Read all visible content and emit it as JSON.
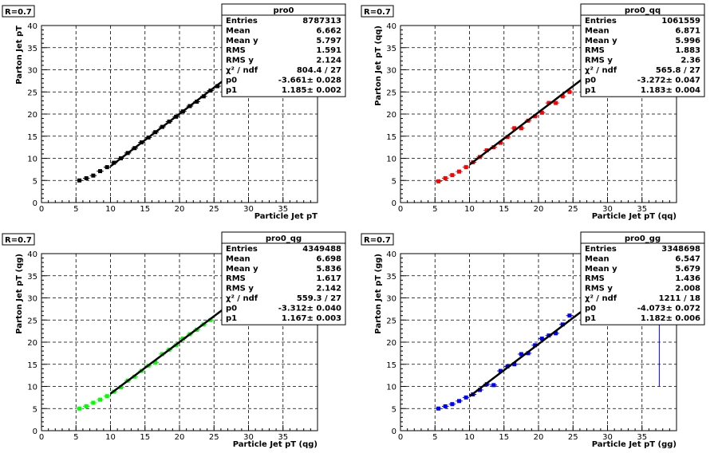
{
  "chart_data": [
    {
      "type": "scatter",
      "label": "R=0.7",
      "ylabel": "Parton Jet pT",
      "xlabel": "Particle Jet pT",
      "xlim": [
        0,
        40
      ],
      "ylim": [
        0,
        40
      ],
      "xticks": [
        0,
        5,
        10,
        15,
        20,
        25,
        30,
        35
      ],
      "yticks": [
        0,
        5,
        10,
        15,
        20,
        25,
        30,
        35,
        40
      ],
      "grid": true,
      "color": "#000000",
      "stats": {
        "title": "pro0",
        "rows": [
          {
            "k": "Entries",
            "v": "8787313"
          },
          {
            "k": "Mean",
            "v": "6.662"
          },
          {
            "k": "Mean y",
            "v": "5.797"
          },
          {
            "k": "RMS",
            "v": "1.591"
          },
          {
            "k": "RMS y",
            "v": "2.124"
          },
          {
            "k": "χ² / ndf",
            "v": "804.4 / 27"
          },
          {
            "k": "p0",
            "v": "-3.661± 0.028"
          },
          {
            "k": "p1",
            "v": "1.185± 0.002"
          }
        ]
      },
      "fit": {
        "x_range": [
          10,
          27
        ],
        "p0": -3.661,
        "p1": 1.185
      },
      "x": [
        5.5,
        6.5,
        7.5,
        8.5,
        9.5,
        10.5,
        11.5,
        12.5,
        13.5,
        14.5,
        15.5,
        16.5,
        17.5,
        18.5,
        19.5,
        20.5,
        21.5,
        22.5,
        23.5,
        24.5,
        25.5
      ],
      "y": [
        5.0,
        5.5,
        6.1,
        7.1,
        8.0,
        9.0,
        10.0,
        11.2,
        12.3,
        13.6,
        14.7,
        15.9,
        17.1,
        18.3,
        19.4,
        20.6,
        21.8,
        22.8,
        24.0,
        25.3,
        26.3
      ],
      "extra_line": null
    },
    {
      "type": "scatter",
      "label": "R=0.7",
      "ylabel": "Parton Jet pT (qq)",
      "xlabel": "Particle Jet pT (qq)",
      "xlim": [
        0,
        40
      ],
      "ylim": [
        0,
        40
      ],
      "xticks": [
        0,
        5,
        10,
        15,
        20,
        25,
        30,
        35
      ],
      "yticks": [
        0,
        5,
        10,
        15,
        20,
        25,
        30,
        35,
        40
      ],
      "grid": true,
      "color": "#ff0000",
      "stats": {
        "title": "pro0_qq",
        "rows": [
          {
            "k": "Entries",
            "v": "1061559"
          },
          {
            "k": "Mean",
            "v": "6.871"
          },
          {
            "k": "Mean y",
            "v": "5.996"
          },
          {
            "k": "RMS",
            "v": "1.883"
          },
          {
            "k": "RMS y",
            "v": "2.36"
          },
          {
            "k": "χ² / ndf",
            "v": "565.8 / 27"
          },
          {
            "k": "p0",
            "v": "-3.272± 0.047"
          },
          {
            "k": "p1",
            "v": "1.183± 0.004"
          }
        ]
      },
      "fit": {
        "x_range": [
          10,
          27
        ],
        "p0": -3.272,
        "p1": 1.183
      },
      "x": [
        5.5,
        6.5,
        7.5,
        8.5,
        9.5,
        10.5,
        11.5,
        12.5,
        13.5,
        14.5,
        15.5,
        16.5,
        17.5,
        18.5,
        19.5,
        20.5,
        21.5,
        22.5,
        23.5,
        24.5
      ],
      "y": [
        4.8,
        5.5,
        6.2,
        7.0,
        8.0,
        9.1,
        10.3,
        11.8,
        12.5,
        13.5,
        14.8,
        16.8,
        16.8,
        18.5,
        19.5,
        20.3,
        22.5,
        22.5,
        24.0,
        25.0
      ],
      "extra_line": null
    },
    {
      "type": "scatter",
      "label": "R=0.7",
      "ylabel": "Parton Jet pT (qg)",
      "xlabel": "Particle Jet pT (qg)",
      "xlim": [
        0,
        40
      ],
      "ylim": [
        0,
        40
      ],
      "xticks": [
        0,
        5,
        10,
        15,
        20,
        25,
        30,
        35
      ],
      "yticks": [
        0,
        5,
        10,
        15,
        20,
        25,
        30,
        35,
        40
      ],
      "grid": true,
      "color": "#00ff00",
      "stats": {
        "title": "pro0_qg",
        "rows": [
          {
            "k": "Entries",
            "v": "4349488"
          },
          {
            "k": "Mean",
            "v": "6.698"
          },
          {
            "k": "Mean y",
            "v": "5.836"
          },
          {
            "k": "RMS",
            "v": "1.617"
          },
          {
            "k": "RMS y",
            "v": "2.142"
          },
          {
            "k": "χ² / ndf",
            "v": "559.3 / 27"
          },
          {
            "k": "p0",
            "v": "-3.312± 0.040"
          },
          {
            "k": "p1",
            "v": "1.167± 0.003"
          }
        ]
      },
      "fit": {
        "x_range": [
          10,
          27
        ],
        "p0": -3.312,
        "p1": 1.167
      },
      "x": [
        5.5,
        6.5,
        7.5,
        8.5,
        9.5,
        10.5,
        11.5,
        12.5,
        13.5,
        14.5,
        15.5,
        16.5,
        17.5,
        18.5,
        19.5,
        20.5,
        21.5,
        22.5,
        23.5,
        24.5
      ],
      "y": [
        5.0,
        5.5,
        6.3,
        7.0,
        7.8,
        8.8,
        9.8,
        11.3,
        12.2,
        13.5,
        14.7,
        15.4,
        17.3,
        18.3,
        19.3,
        20.8,
        21.8,
        22.8,
        24.0,
        25.0
      ],
      "extra_line": null
    },
    {
      "type": "scatter",
      "label": "R=0.7",
      "ylabel": "Parton Jet pT (gg)",
      "xlabel": "Particle Jet pT (gg)",
      "xlim": [
        0,
        40
      ],
      "ylim": [
        0,
        40
      ],
      "xticks": [
        0,
        5,
        10,
        15,
        20,
        25,
        30,
        35
      ],
      "yticks": [
        0,
        5,
        10,
        15,
        20,
        25,
        30,
        35,
        40
      ],
      "grid": true,
      "color": "#0000ff",
      "stats": {
        "title": "pro0_gg",
        "rows": [
          {
            "k": "Entries",
            "v": "3348698"
          },
          {
            "k": "Mean",
            "v": "6.547"
          },
          {
            "k": "Mean y",
            "v": "5.679"
          },
          {
            "k": "RMS",
            "v": "1.436"
          },
          {
            "k": "RMS y",
            "v": "2.008"
          },
          {
            "k": "χ² / ndf",
            "v": "1211 / 18"
          },
          {
            "k": "p0",
            "v": "-4.073± 0.072"
          },
          {
            "k": "p1",
            "v": "1.182± 0.006"
          }
        ]
      },
      "fit": {
        "x_range": [
          10,
          27
        ],
        "p0": -4.073,
        "p1": 1.182
      },
      "x": [
        5.5,
        6.5,
        7.5,
        8.5,
        9.5,
        10.5,
        11.5,
        12.5,
        13.5,
        14.5,
        15.5,
        16.5,
        17.5,
        18.5,
        19.5,
        20.5,
        21.5,
        22.5,
        23.5,
        24.5
      ],
      "y": [
        5.0,
        5.5,
        6.0,
        6.7,
        7.5,
        8.2,
        9.2,
        10.5,
        10.3,
        13.5,
        14.5,
        15.0,
        17.3,
        17.5,
        19.3,
        20.8,
        21.5,
        22.0,
        24.0,
        26.0
      ],
      "extra_line": {
        "x": 37.5,
        "y": [
          10,
          36
        ]
      }
    }
  ]
}
